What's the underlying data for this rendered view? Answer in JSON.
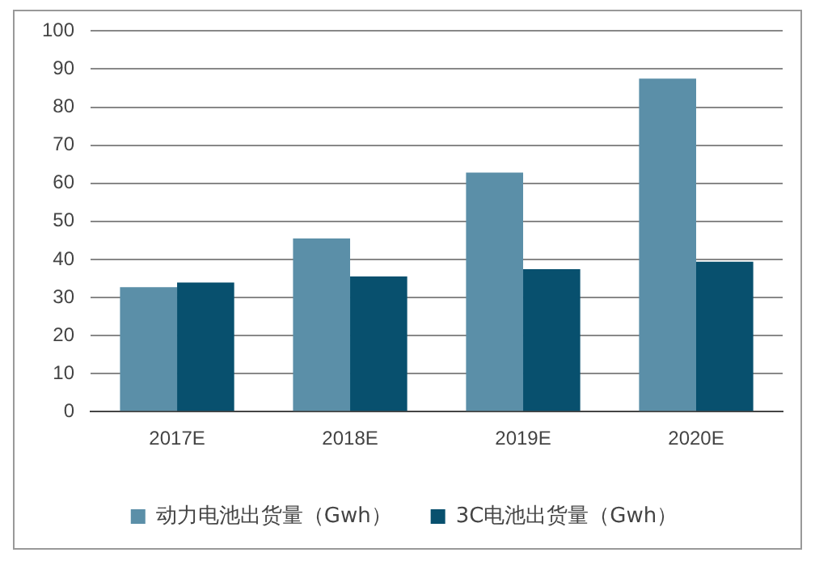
{
  "chart_data": {
    "type": "bar",
    "categories": [
      "2017E",
      "2018E",
      "2019E",
      "2020E"
    ],
    "series": [
      {
        "name": "动力电池出货量（Gwh）",
        "color": "#5b8fa8",
        "values": [
          32.7,
          45.5,
          62.8,
          87.5
        ]
      },
      {
        "name": "3C电池出货量（Gwh）",
        "color": "#08506e",
        "values": [
          33.9,
          35.5,
          37.4,
          39.4
        ]
      }
    ],
    "ylim": [
      0,
      100
    ],
    "yticks": [
      0,
      10,
      20,
      30,
      40,
      50,
      60,
      70,
      80,
      90,
      100
    ],
    "grid": "y",
    "legend": "bottom"
  }
}
